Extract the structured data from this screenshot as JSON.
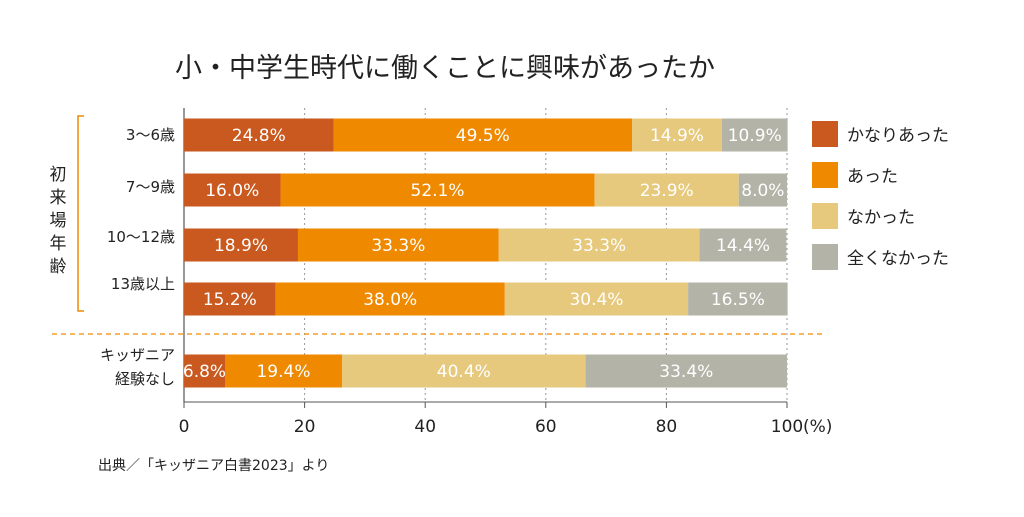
{
  "chart_data": {
    "type": "bar",
    "orientation": "horizontal",
    "stacked": true,
    "title": "小・中学生時代に働くことに興味があったか",
    "categories": [
      "3〜6歳",
      "7〜9歳",
      "10〜12歳",
      "13歳以上",
      "キッザニア経験なし"
    ],
    "category_lines": [
      [
        "3〜6歳"
      ],
      [
        "7〜9歳"
      ],
      [
        "10〜12歳"
      ],
      [
        "13歳以上"
      ],
      [
        "キッザニア",
        "経験なし"
      ]
    ],
    "group_label": "初来場年齢",
    "group_members": [
      "3〜6歳",
      "7〜9歳",
      "10〜12歳",
      "13歳以上"
    ],
    "series": [
      {
        "name": "かなりあった",
        "color": "#c9591e",
        "values": [
          24.8,
          16.0,
          18.9,
          15.2,
          6.8
        ]
      },
      {
        "name": "あった",
        "color": "#ef8a00",
        "values": [
          49.5,
          52.1,
          33.3,
          38.0,
          19.4
        ]
      },
      {
        "name": "なかった",
        "color": "#e6c97c",
        "values": [
          14.9,
          23.9,
          33.3,
          30.4,
          40.4
        ]
      },
      {
        "name": "全くなかった",
        "color": "#b3b3a8",
        "values": [
          10.9,
          8.0,
          14.4,
          16.5,
          33.4
        ]
      }
    ],
    "value_labels": [
      [
        "24.8%",
        "49.5%",
        "14.9%",
        "10.9%"
      ],
      [
        "16.0%",
        "52.1%",
        "23.9%",
        "8.0%"
      ],
      [
        "18.9%",
        "33.3%",
        "33.3%",
        "14.4%"
      ],
      [
        "15.2%",
        "38.0%",
        "30.4%",
        "16.5%"
      ],
      [
        "6.8%",
        "19.4%",
        "40.4%",
        "33.4%"
      ]
    ],
    "xlim": [
      0,
      100
    ],
    "xticks": [
      "0",
      "20",
      "40",
      "60",
      "80",
      "100"
    ],
    "x_unit": "(%)",
    "grid": true,
    "legend_position": "right",
    "source": "出典／「キッザニア白書2023」より"
  }
}
